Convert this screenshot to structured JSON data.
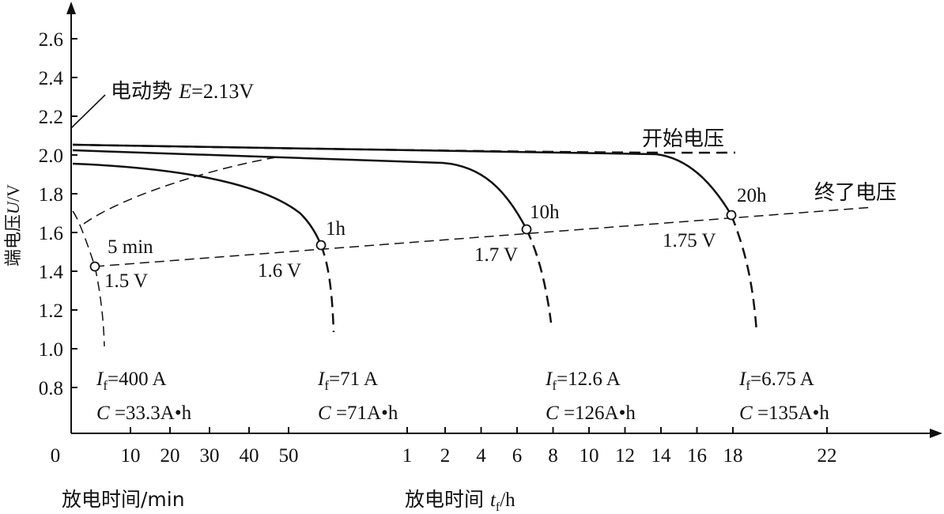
{
  "chart_data": {
    "type": "line",
    "ylabel": "端电压U/V",
    "ylabel_parts": [
      "端电压",
      "U",
      "/V"
    ],
    "y_ticks": [
      "2.6",
      "2.4",
      "2.2",
      "2.0",
      "1.8",
      "1.6",
      "1.4",
      "1.2",
      "1.0",
      "0.8"
    ],
    "y_range": [
      0.6,
      2.75
    ],
    "x_ticks_min": [
      "0",
      "10",
      "20",
      "30",
      "40",
      "50"
    ],
    "x_ticks_h": [
      "1",
      "2",
      "4",
      "6",
      "8",
      "10",
      "12",
      "14",
      "16",
      "18",
      "22"
    ],
    "xlabel_min": "放电时间/min",
    "xlabel_h_parts": [
      "放电时间 ",
      "t",
      "f",
      "/h"
    ],
    "annotations": {
      "emf": {
        "label": "电动势 ",
        "var": "E",
        "value": "=2.13V"
      },
      "start_voltage": "开始电压",
      "end_voltage": "终了电压"
    },
    "series": [
      {
        "name": "5 min",
        "end_voltage": "1.5 V",
        "current": "400 A",
        "capacity": "33.3A•h"
      },
      {
        "name": "1h",
        "end_voltage": "1.6 V",
        "current": "71 A",
        "capacity": "71A•h"
      },
      {
        "name": "10h",
        "end_voltage": "1.7 V",
        "current": "12.6 A",
        "capacity": "126A•h"
      },
      {
        "name": "20h",
        "end_voltage": "1.75 V",
        "current": "6.75 A",
        "capacity": "135A•h"
      }
    ],
    "current_prefix": "I",
    "current_sub": "f",
    "current_eq": "=",
    "capacity_prefix": "C",
    "capacity_eq": " ="
  }
}
